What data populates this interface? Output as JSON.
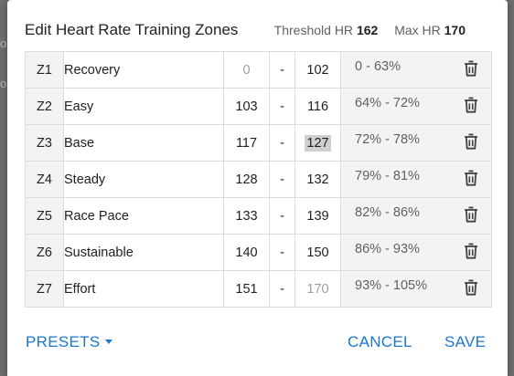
{
  "dialog": {
    "title": "Edit Heart Rate Training Zones",
    "threshold_label": "Threshold HR",
    "threshold_value": "162",
    "max_label": "Max HR",
    "max_value": "170"
  },
  "zones": [
    {
      "id": "Z1",
      "name": "Recovery",
      "min": "0",
      "dash": "-",
      "max": "102",
      "pct": "0 - 63%"
    },
    {
      "id": "Z2",
      "name": "Easy",
      "min": "103",
      "dash": "-",
      "max": "116",
      "pct": "64% - 72%"
    },
    {
      "id": "Z3",
      "name": "Base",
      "min": "117",
      "dash": "-",
      "max": "127",
      "pct": "72% - 78%"
    },
    {
      "id": "Z4",
      "name": "Steady",
      "min": "128",
      "dash": "-",
      "max": "132",
      "pct": "79% - 81%"
    },
    {
      "id": "Z5",
      "name": "Race Pace",
      "min": "133",
      "dash": "-",
      "max": "139",
      "pct": "82% - 86%"
    },
    {
      "id": "Z6",
      "name": "Sustainable",
      "min": "140",
      "dash": "-",
      "max": "150",
      "pct": "86% - 93%"
    },
    {
      "id": "Z7",
      "name": "Effort",
      "min": "151",
      "dash": "-",
      "max": "170",
      "pct": "93% - 105%"
    }
  ],
  "footer": {
    "presets_label": "PRESETS",
    "cancel_label": "CANCEL",
    "save_label": "SAVE"
  },
  "icons": {
    "delete": "trash-can-icon",
    "presets_dropdown": "caret-down-icon"
  },
  "colors": {
    "accent": "#1976d2",
    "zone_cell_bg": "#f3f3f3",
    "selected_text_bg": "#cfcfcf"
  }
}
